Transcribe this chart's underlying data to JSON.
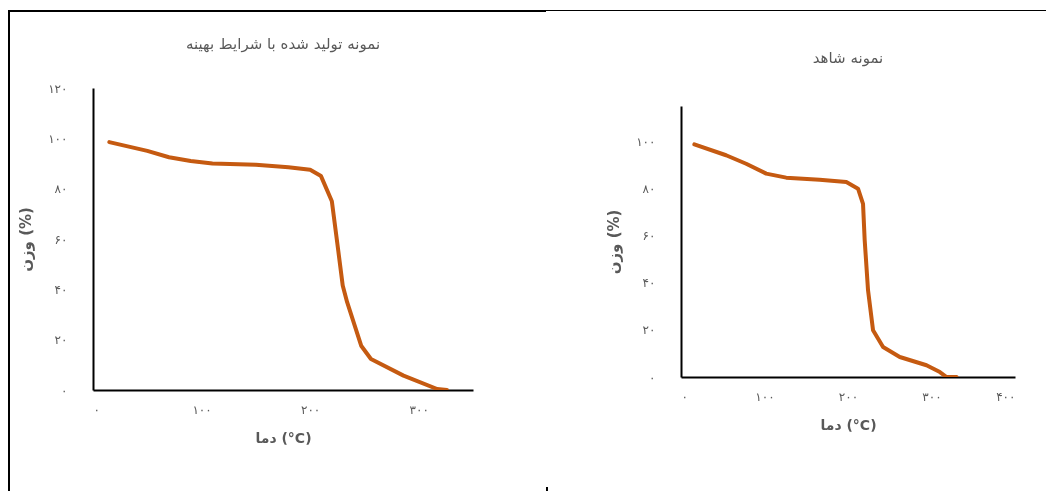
{
  "chart_data": [
    {
      "type": "line",
      "title": "نمونه تولید شده با شرایط بهینه",
      "xlabel": "دما (°C)",
      "ylabel": "وزن (%)",
      "xlim": [
        0,
        350
      ],
      "ylim": [
        0,
        120
      ],
      "xticks": [
        {
          "value": 0,
          "label": "۰"
        },
        {
          "value": 100,
          "label": "۱۰۰"
        },
        {
          "value": 200,
          "label": "۲۰۰"
        },
        {
          "value": 300,
          "label": "۳۰۰"
        }
      ],
      "yticks": [
        {
          "value": 0,
          "label": "۰"
        },
        {
          "value": 20,
          "label": "۲۰"
        },
        {
          "value": 40,
          "label": "۴۰"
        },
        {
          "value": 60,
          "label": "۶۰"
        },
        {
          "value": 80,
          "label": "۸۰"
        },
        {
          "value": 100,
          "label": "۱۰۰"
        },
        {
          "value": 120,
          "label": "۱۲۰"
        }
      ],
      "grid": false,
      "marker": "none",
      "line_style": "solid",
      "series": [
        {
          "color": "#c55a11",
          "x": [
            15,
            30,
            50,
            70,
            90,
            110,
            150,
            180,
            200,
            210,
            220,
            226,
            230,
            234,
            247,
            256,
            286,
            317,
            326
          ],
          "values": [
            98.5,
            97,
            95,
            92.5,
            91,
            90,
            89.5,
            88.5,
            87.5,
            85,
            75,
            55,
            41.5,
            35,
            17.6,
            12.3,
            5.7,
            0.4,
            0
          ]
        }
      ]
    },
    {
      "type": "line",
      "title": "نمونه شاهد",
      "xlabel": "دما (°C)",
      "ylabel": "وزن (%)",
      "xlim": [
        0,
        400
      ],
      "ylim": [
        0,
        115
      ],
      "xticks": [
        {
          "value": 0,
          "label": "۰"
        },
        {
          "value": 100,
          "label": "۱۰۰"
        },
        {
          "value": 200,
          "label": "۲۰۰"
        },
        {
          "value": 300,
          "label": "۳۰۰"
        },
        {
          "value": 400,
          "label": "۴۰۰"
        }
      ],
      "yticks": [
        {
          "value": 0,
          "label": "۰"
        },
        {
          "value": 20,
          "label": "۲۰"
        },
        {
          "value": 40,
          "label": "۴۰"
        },
        {
          "value": 60,
          "label": "۶۰"
        },
        {
          "value": 80,
          "label": "۸۰"
        },
        {
          "value": 100,
          "label": "۱۰۰"
        }
      ],
      "grid": false,
      "marker": "none",
      "line_style": "solid",
      "series": [
        {
          "color": "#c55a11",
          "x": [
            16,
            54,
            78,
            102,
            126,
            166,
            198,
            212,
            218,
            220,
            224,
            230,
            242,
            262,
            294,
            310,
            318,
            330
          ],
          "values": [
            98.7,
            94.1,
            90.5,
            86.3,
            84.6,
            83.7,
            82.7,
            79.9,
            73.5,
            58,
            36.8,
            19.8,
            12.7,
            8.5,
            5,
            2.1,
            0,
            0
          ]
        }
      ]
    }
  ]
}
